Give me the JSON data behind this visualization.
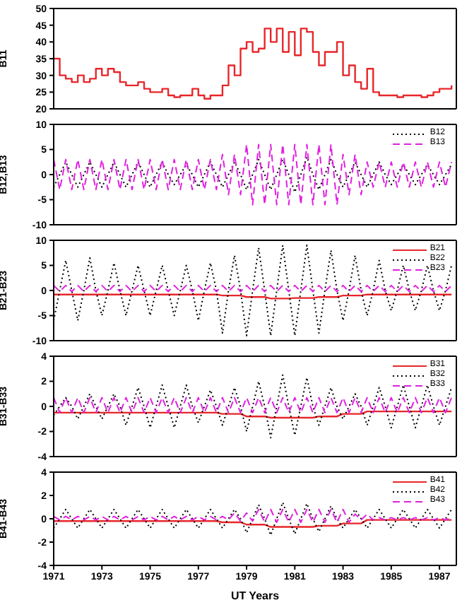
{
  "chart_data": [
    {
      "type": "step",
      "ylabel": "B11",
      "xlim": [
        1971,
        1987.7
      ],
      "xticks": [
        1971,
        1973,
        1975,
        1977,
        1979,
        1981,
        1983,
        1985,
        1987
      ],
      "ylim": [
        20,
        50
      ],
      "yticks": [
        20,
        25,
        30,
        35,
        40,
        45,
        50
      ],
      "tick_labels": "y",
      "x": [
        1971,
        1971.25,
        1971.5,
        1971.75,
        1972,
        1972.25,
        1972.5,
        1972.75,
        1973,
        1973.25,
        1973.5,
        1973.75,
        1974,
        1974.25,
        1974.5,
        1974.75,
        1975,
        1975.25,
        1975.5,
        1975.75,
        1976,
        1976.25,
        1976.5,
        1976.75,
        1977,
        1977.25,
        1977.5,
        1977.75,
        1978,
        1978.25,
        1978.5,
        1978.75,
        1979,
        1979.25,
        1979.5,
        1979.75,
        1980,
        1980.25,
        1980.5,
        1980.75,
        1981,
        1981.25,
        1981.5,
        1981.75,
        1982,
        1982.25,
        1982.5,
        1982.75,
        1983,
        1983.25,
        1983.5,
        1983.75,
        1984,
        1984.25,
        1984.5,
        1984.75,
        1985,
        1985.25,
        1985.5,
        1985.75,
        1986,
        1986.25,
        1986.5,
        1986.75,
        1987,
        1987.25,
        1987.5
      ],
      "series": [
        {
          "color": "#e8262a",
          "line_style": "solid",
          "values": [
            35,
            30,
            29,
            28,
            30,
            28,
            29,
            32,
            30,
            32,
            31,
            28,
            27,
            27,
            28,
            26,
            25,
            25,
            26,
            24,
            23.5,
            24,
            24,
            26,
            24,
            23,
            24,
            24,
            27,
            33,
            30,
            38,
            40,
            37,
            38,
            44,
            40,
            44,
            37,
            43,
            36,
            44,
            43,
            37,
            33,
            37,
            37,
            40,
            30,
            33,
            28,
            26,
            32,
            25,
            24,
            24,
            24,
            23.5,
            24,
            24,
            24,
            23.5,
            24,
            25,
            26,
            26,
            27
          ]
        }
      ]
    },
    {
      "type": "line",
      "ylabel": "B12,B13",
      "xlim": [
        1971,
        1987.7
      ],
      "xticks": [
        1971,
        1973,
        1975,
        1977,
        1979,
        1981,
        1983,
        1985,
        1987
      ],
      "ylim": [
        -10,
        10
      ],
      "yticks": [
        -10,
        -5,
        0,
        5,
        10
      ],
      "tick_labels": "y",
      "legend": "top right",
      "x": [
        1971,
        1971.25,
        1971.5,
        1971.75,
        1972,
        1972.25,
        1972.5,
        1972.75,
        1973,
        1973.25,
        1973.5,
        1973.75,
        1974,
        1974.25,
        1974.5,
        1974.75,
        1975,
        1975.25,
        1975.5,
        1975.75,
        1976,
        1976.25,
        1976.5,
        1976.75,
        1977,
        1977.25,
        1977.5,
        1977.75,
        1978,
        1978.25,
        1978.5,
        1978.75,
        1979,
        1979.25,
        1979.5,
        1979.75,
        1980,
        1980.25,
        1980.5,
        1980.75,
        1981,
        1981.25,
        1981.5,
        1981.75,
        1982,
        1982.25,
        1982.5,
        1982.75,
        1983,
        1983.25,
        1983.5,
        1983.75,
        1984,
        1984.25,
        1984.5,
        1984.75,
        1985,
        1985.25,
        1985.5,
        1985.75,
        1986,
        1986.25,
        1986.5,
        1986.75,
        1987,
        1987.25,
        1987.5
      ],
      "series": [
        {
          "name": "B12",
          "color": "#000000",
          "line_style": "dotted",
          "values": [
            -2.5,
            0,
            2.5,
            0,
            -2.5,
            0,
            2.5,
            0,
            -2.5,
            0,
            2.5,
            0,
            -2.5,
            0,
            2.5,
            0,
            -2.5,
            0,
            2.5,
            0,
            -2,
            0,
            2,
            0,
            -2.5,
            0,
            2.5,
            0,
            -2.5,
            0,
            2.5,
            0,
            -3,
            0,
            3,
            0,
            -3,
            0,
            3,
            0,
            -3.5,
            0,
            3.5,
            0,
            -3,
            0,
            3,
            0,
            -2.5,
            0,
            2.5,
            0,
            -2.5,
            0,
            2.5,
            0,
            -2,
            0,
            2,
            0,
            -2,
            0,
            2,
            0,
            -2,
            0,
            2
          ]
        },
        {
          "name": "B13",
          "color": "#e020e0",
          "line_style": "dashed",
          "values": [
            3,
            -3,
            3,
            -3,
            3,
            -3,
            3,
            -3,
            3,
            -3,
            3,
            -3,
            3,
            -3,
            3,
            -3,
            3,
            -3,
            3,
            -3,
            3,
            -3,
            3,
            -3,
            3,
            -3,
            3,
            -3,
            4,
            -4,
            4,
            -4,
            6,
            -6,
            6,
            -6,
            6,
            -6,
            6,
            -6,
            6,
            -6,
            6,
            -6,
            6,
            -6,
            6,
            -6,
            4,
            -4,
            4,
            -4,
            2.5,
            -2.5,
            2.5,
            -2.5,
            2.5,
            -2.5,
            2.5,
            -2.5,
            2.5,
            -2.5,
            2.5,
            -2.5,
            2.5,
            -2.5,
            2.5
          ]
        }
      ]
    },
    {
      "type": "line",
      "ylabel": "B21-B23",
      "xlim": [
        1971,
        1987.7
      ],
      "xticks": [
        1971,
        1973,
        1975,
        1977,
        1979,
        1981,
        1983,
        1985,
        1987
      ],
      "ylim": [
        -10,
        10
      ],
      "yticks": [
        -10,
        -5,
        0,
        5,
        10
      ],
      "tick_labels": "y",
      "legend": "top right",
      "x": [
        1971,
        1971.25,
        1971.5,
        1971.75,
        1972,
        1972.25,
        1972.5,
        1972.75,
        1973,
        1973.25,
        1973.5,
        1973.75,
        1974,
        1974.25,
        1974.5,
        1974.75,
        1975,
        1975.25,
        1975.5,
        1975.75,
        1976,
        1976.25,
        1976.5,
        1976.75,
        1977,
        1977.25,
        1977.5,
        1977.75,
        1978,
        1978.25,
        1978.5,
        1978.75,
        1979,
        1979.25,
        1979.5,
        1979.75,
        1980,
        1980.25,
        1980.5,
        1980.75,
        1981,
        1981.25,
        1981.5,
        1981.75,
        1982,
        1982.25,
        1982.5,
        1982.75,
        1983,
        1983.25,
        1983.5,
        1983.75,
        1984,
        1984.25,
        1984.5,
        1984.75,
        1985,
        1985.25,
        1985.5,
        1985.75,
        1986,
        1986.25,
        1986.5,
        1986.75,
        1987,
        1987.25,
        1987.5
      ],
      "series": [
        {
          "name": "B21",
          "color": "#e8262a",
          "line_style": "solid",
          "values": [
            -0.8,
            -0.8,
            -0.8,
            -0.8,
            -0.8,
            -0.8,
            -0.8,
            -0.8,
            -0.8,
            -0.8,
            -0.8,
            -0.8,
            -0.8,
            -0.8,
            -0.8,
            -0.8,
            -0.8,
            -0.8,
            -0.8,
            -0.8,
            -0.8,
            -0.8,
            -0.8,
            -0.8,
            -0.8,
            -0.8,
            -0.8,
            -0.8,
            -1,
            -1,
            -1,
            -1,
            -1.3,
            -1.3,
            -1.3,
            -1.3,
            -1.6,
            -1.6,
            -1.6,
            -1.6,
            -1.5,
            -1.5,
            -1.5,
            -1.5,
            -1.3,
            -1.3,
            -1.3,
            -1.3,
            -1,
            -1,
            -1,
            -1,
            -0.8,
            -0.8,
            -0.8,
            -0.8,
            -0.8,
            -0.8,
            -0.8,
            -0.8,
            -0.8,
            -0.8,
            -0.8,
            -0.8,
            -0.8,
            -0.8,
            -0.8
          ]
        },
        {
          "name": "B22",
          "color": "#000000",
          "line_style": "dotted",
          "values": [
            -6,
            0,
            6,
            0,
            -6,
            0,
            6.5,
            0,
            -5,
            0,
            5.5,
            0,
            -5,
            0,
            5,
            0,
            -5,
            0,
            5,
            0,
            -5,
            0,
            5,
            0,
            -6,
            0,
            5.5,
            0,
            -8.5,
            0,
            7,
            0,
            -9,
            0,
            8.5,
            0,
            -9,
            0,
            9,
            0,
            -9,
            0,
            9,
            0,
            -8.5,
            0,
            8,
            0,
            -6,
            0,
            7,
            0,
            -5,
            0,
            6,
            0,
            -4,
            0,
            5,
            0,
            -4,
            0,
            5,
            0,
            -4,
            0,
            5
          ]
        },
        {
          "name": "B23",
          "color": "#e020e0",
          "line_style": "dashed",
          "values": [
            1,
            -0.2,
            1,
            -0.2,
            1,
            -0.2,
            1,
            -0.2,
            1,
            -0.2,
            1,
            -0.2,
            1,
            -0.2,
            1,
            -0.2,
            1,
            -0.2,
            1,
            -0.2,
            1,
            -0.2,
            1,
            -0.2,
            1,
            -0.2,
            1,
            -0.2,
            1,
            -0.2,
            1,
            -0.2,
            1,
            -0.2,
            1,
            -0.2,
            1,
            -0.2,
            1,
            -0.2,
            1,
            -0.2,
            1,
            -0.2,
            1,
            -0.2,
            1,
            -0.2,
            1,
            -0.2,
            1,
            -0.2,
            1,
            -0.2,
            1,
            -0.2,
            1,
            -0.2,
            1,
            -0.2,
            1,
            -0.2,
            1,
            -0.2,
            1,
            -0.2,
            1
          ]
        }
      ]
    },
    {
      "type": "line",
      "ylabel": "B31-B33",
      "xlim": [
        1971,
        1987.7
      ],
      "xticks": [
        1971,
        1973,
        1975,
        1977,
        1979,
        1981,
        1983,
        1985,
        1987
      ],
      "ylim": [
        -4,
        4
      ],
      "yticks": [
        -4,
        -2,
        0,
        2,
        4
      ],
      "tick_labels": "y",
      "legend": "top right",
      "x": [
        1971,
        1971.25,
        1971.5,
        1971.75,
        1972,
        1972.25,
        1972.5,
        1972.75,
        1973,
        1973.25,
        1973.5,
        1973.75,
        1974,
        1974.25,
        1974.5,
        1974.75,
        1975,
        1975.25,
        1975.5,
        1975.75,
        1976,
        1976.25,
        1976.5,
        1976.75,
        1977,
        1977.25,
        1977.5,
        1977.75,
        1978,
        1978.25,
        1978.5,
        1978.75,
        1979,
        1979.25,
        1979.5,
        1979.75,
        1980,
        1980.25,
        1980.5,
        1980.75,
        1981,
        1981.25,
        1981.5,
        1981.75,
        1982,
        1982.25,
        1982.5,
        1982.75,
        1983,
        1983.25,
        1983.5,
        1983.75,
        1984,
        1984.25,
        1984.5,
        1984.75,
        1985,
        1985.25,
        1985.5,
        1985.75,
        1986,
        1986.25,
        1986.5,
        1986.75,
        1987,
        1987.25,
        1987.5
      ],
      "series": [
        {
          "name": "B31",
          "color": "#e8262a",
          "line_style": "solid",
          "values": [
            -0.5,
            -0.5,
            -0.5,
            -0.5,
            -0.5,
            -0.5,
            -0.5,
            -0.5,
            -0.5,
            -0.5,
            -0.5,
            -0.5,
            -0.5,
            -0.5,
            -0.5,
            -0.5,
            -0.5,
            -0.5,
            -0.5,
            -0.5,
            -0.5,
            -0.5,
            -0.5,
            -0.5,
            -0.5,
            -0.5,
            -0.5,
            -0.5,
            -0.6,
            -0.6,
            -0.6,
            -0.6,
            -0.8,
            -0.8,
            -0.8,
            -0.8,
            -0.9,
            -0.9,
            -0.9,
            -0.9,
            -0.9,
            -0.9,
            -0.9,
            -0.9,
            -0.8,
            -0.8,
            -0.8,
            -0.8,
            -0.6,
            -0.6,
            -0.6,
            -0.6,
            -0.4,
            -0.4,
            -0.4,
            -0.4,
            -0.4,
            -0.4,
            -0.4,
            -0.4,
            -0.4,
            -0.4,
            -0.4,
            -0.4,
            -0.4,
            -0.4,
            -0.4
          ]
        },
        {
          "name": "B32",
          "color": "#000000",
          "line_style": "dotted",
          "values": [
            -0.7,
            0,
            0.7,
            0,
            -1,
            0,
            1,
            0,
            -1,
            0,
            1,
            0,
            -1.5,
            0,
            1.5,
            0,
            -1.7,
            0,
            1.7,
            0,
            -1.7,
            0,
            1.7,
            0,
            -1.3,
            0,
            1.3,
            0,
            -1.5,
            0,
            1.5,
            0,
            -2,
            0,
            2,
            0,
            -2.5,
            0,
            2.5,
            0,
            -2.3,
            0,
            2.3,
            0,
            -1.5,
            0,
            1.5,
            0,
            -1,
            0,
            1,
            0,
            -1.5,
            0,
            1.5,
            0,
            -1.7,
            0,
            1.7,
            0,
            -1.7,
            0,
            1.7,
            0,
            -1.5,
            0,
            1.5
          ]
        },
        {
          "name": "B33",
          "color": "#e020e0",
          "line_style": "dashed",
          "values": [
            0.7,
            -0.5,
            0.7,
            -0.5,
            0.7,
            -0.5,
            0.7,
            -0.5,
            0.7,
            -0.5,
            0.7,
            -0.5,
            0.7,
            -0.5,
            0.7,
            -0.5,
            0.7,
            -0.5,
            0.7,
            -0.5,
            0.7,
            -0.5,
            0.7,
            -0.5,
            0.7,
            -0.5,
            0.7,
            -0.5,
            0.7,
            -0.5,
            0.7,
            -0.5,
            0.7,
            -0.5,
            0.7,
            -0.5,
            0.7,
            -0.5,
            0.7,
            -0.5,
            0.7,
            -0.5,
            0.7,
            -0.5,
            0.7,
            -0.5,
            0.7,
            -0.5,
            0.7,
            -0.5,
            0.7,
            -0.5,
            0.7,
            -0.5,
            0.7,
            -0.5,
            0.7,
            -0.5,
            0.7,
            -0.5,
            0.7,
            -0.5,
            0.7,
            -0.5,
            0.7,
            -0.5,
            0.7
          ]
        }
      ]
    },
    {
      "type": "line",
      "ylabel": "B41-B43",
      "xlabel": "UT Years",
      "xlim": [
        1971,
        1987.7
      ],
      "xticks": [
        1971,
        1973,
        1975,
        1977,
        1979,
        1981,
        1983,
        1985,
        1987
      ],
      "ylim": [
        -4,
        4
      ],
      "yticks": [
        -4,
        -2,
        0,
        2,
        4
      ],
      "legend": "top right",
      "x": [
        1971,
        1971.25,
        1971.5,
        1971.75,
        1972,
        1972.25,
        1972.5,
        1972.75,
        1973,
        1973.25,
        1973.5,
        1973.75,
        1974,
        1974.25,
        1974.5,
        1974.75,
        1975,
        1975.25,
        1975.5,
        1975.75,
        1976,
        1976.25,
        1976.5,
        1976.75,
        1977,
        1977.25,
        1977.5,
        1977.75,
        1978,
        1978.25,
        1978.5,
        1978.75,
        1979,
        1979.25,
        1979.5,
        1979.75,
        1980,
        1980.25,
        1980.5,
        1980.75,
        1981,
        1981.25,
        1981.5,
        1981.75,
        1982,
        1982.25,
        1982.5,
        1982.75,
        1983,
        1983.25,
        1983.5,
        1983.75,
        1984,
        1984.25,
        1984.5,
        1984.75,
        1985,
        1985.25,
        1985.5,
        1985.75,
        1986,
        1986.25,
        1986.5,
        1986.75,
        1987,
        1987.25,
        1987.5
      ],
      "series": [
        {
          "name": "B41",
          "color": "#e8262a",
          "line_style": "solid",
          "values": [
            -0.2,
            -0.2,
            -0.2,
            -0.2,
            -0.2,
            -0.2,
            -0.2,
            -0.2,
            -0.2,
            -0.2,
            -0.2,
            -0.2,
            -0.2,
            -0.2,
            -0.2,
            -0.2,
            -0.2,
            -0.2,
            -0.2,
            -0.2,
            -0.2,
            -0.2,
            -0.2,
            -0.2,
            -0.2,
            -0.2,
            -0.2,
            -0.2,
            -0.3,
            -0.3,
            -0.3,
            -0.3,
            -0.5,
            -0.5,
            -0.5,
            -0.5,
            -0.7,
            -0.7,
            -0.7,
            -0.7,
            -0.7,
            -0.7,
            -0.7,
            -0.7,
            -0.6,
            -0.6,
            -0.6,
            -0.6,
            -0.4,
            -0.4,
            -0.4,
            -0.4,
            -0.1,
            -0.1,
            -0.1,
            -0.1,
            -0.1,
            -0.1,
            -0.1,
            -0.1,
            -0.1,
            -0.1,
            -0.1,
            -0.1,
            -0.1,
            -0.1,
            -0.1
          ]
        },
        {
          "name": "B42",
          "color": "#000000",
          "line_style": "dotted",
          "values": [
            -0.8,
            0,
            0.8,
            0,
            -0.8,
            0,
            0.8,
            0,
            -0.8,
            0,
            0.8,
            0,
            -0.8,
            0,
            0.8,
            0,
            -0.8,
            0,
            0.8,
            0,
            -0.8,
            0,
            0.8,
            0,
            -0.8,
            0,
            0.8,
            0,
            -0.8,
            0,
            0.8,
            0,
            -1.2,
            0,
            1.2,
            0,
            -1.4,
            0,
            1.4,
            0,
            -1.3,
            0,
            1.3,
            0,
            -1.1,
            0,
            1.1,
            0,
            -0.8,
            0,
            0.8,
            0,
            -0.8,
            0,
            0.8,
            0,
            -0.8,
            0,
            0.8,
            0,
            -0.8,
            0,
            0.8,
            0,
            -0.8,
            0,
            0.8
          ]
        },
        {
          "name": "B43",
          "color": "#e020e0",
          "line_style": "dashed",
          "values": [
            0.2,
            -0.1,
            0.2,
            -0.1,
            0.2,
            -0.1,
            0.2,
            -0.1,
            0.2,
            -0.1,
            0.2,
            -0.1,
            0.2,
            -0.1,
            0.2,
            -0.1,
            0.2,
            -0.1,
            0.2,
            -0.1,
            0.2,
            -0.1,
            0.2,
            -0.1,
            0.2,
            -0.1,
            0.2,
            -0.1,
            0.2,
            -0.1,
            0.5,
            -0.2,
            0.5,
            -0.2,
            0.8,
            -0.3,
            0.8,
            -0.3,
            0.8,
            -0.3,
            0.8,
            -0.3,
            0.8,
            -0.3,
            0.8,
            -0.3,
            0.8,
            -0.3,
            0.8,
            -0.3,
            0.4,
            -0.1,
            0.4,
            -0.1,
            0.1,
            -0.1,
            0.1,
            -0.1,
            0.1,
            -0.1,
            0.1,
            -0.1,
            0.1,
            -0.1,
            0.1,
            -0.1,
            0.1
          ]
        }
      ]
    }
  ]
}
